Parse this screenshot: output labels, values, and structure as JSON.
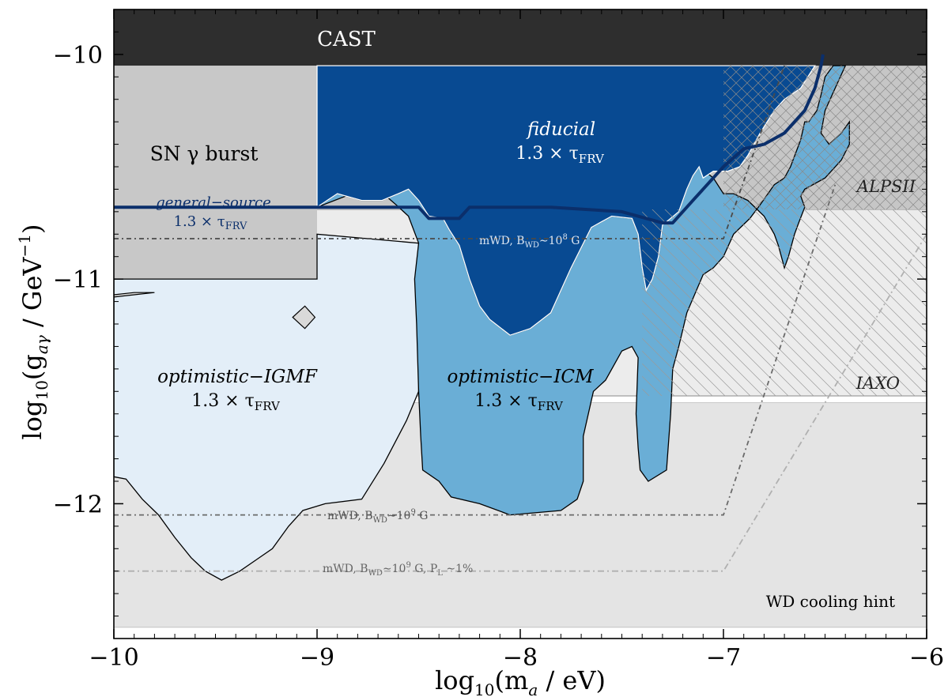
{
  "chart_data": {
    "type": "area",
    "title": "",
    "xlabel": "log₁₀(mₐ / eV)",
    "ylabel": "log₁₀(g_aγ / GeV⁻¹)",
    "xlim": [
      -10,
      -6
    ],
    "ylim": [
      -12.6,
      -9.8
    ],
    "x_ticks": [
      -10,
      -9,
      -8,
      -7,
      -6
    ],
    "x_tick_labels": [
      "−10",
      "−9",
      "−8",
      "−7",
      "−6"
    ],
    "y_ticks": [
      -12,
      -11,
      -10
    ],
    "y_tick_labels": [
      "−12",
      "−11",
      "−10"
    ],
    "grid": false,
    "colors": {
      "cast": "#2e2e2e",
      "sn": "#c8c8c8",
      "fiducial": "#084a92",
      "icm": "#6aaed6",
      "igmf": "#e3eef8",
      "wd": "#e4e4e4",
      "alps": "#c6c6c6",
      "iaxo": "#ececec",
      "general_source": "#0b2f6b"
    },
    "regions": [
      {
        "key": "cast",
        "label": "CAST",
        "polygon": [
          [
            -10,
            -10.05
          ],
          [
            -10,
            -9.8
          ],
          [
            -6,
            -9.8
          ],
          [
            -6,
            -10.05
          ]
        ]
      },
      {
        "key": "sn",
        "label": "SN γ burst",
        "polygon": [
          [
            -10,
            -11.0
          ],
          [
            -10,
            -10.05
          ],
          [
            -9,
            -10.05
          ],
          [
            -9,
            -11.0
          ]
        ]
      },
      {
        "key": "wd",
        "label": "WD cooling hint",
        "polygon": [
          [
            -10,
            -12.55
          ],
          [
            -10,
            -11.55
          ],
          [
            -6,
            -11.55
          ],
          [
            -6,
            -12.55
          ]
        ]
      },
      {
        "key": "iaxo",
        "label": "IAXO",
        "polygon": [
          [
            -10,
            -11.52
          ],
          [
            -10,
            -10.69
          ],
          [
            -6,
            -10.69
          ],
          [
            -6,
            -11.52
          ]
        ]
      },
      {
        "key": "alps",
        "label": "ALPSII",
        "polygon": [
          [
            -10,
            -10.69
          ],
          [
            -10,
            -10.05
          ],
          [
            -6,
            -10.05
          ],
          [
            -6,
            -10.69
          ]
        ]
      },
      {
        "key": "igmf",
        "label": "optimistic−IGMF",
        "label2": "1.3 × τ_FRV",
        "polygon": [
          [
            -10,
            -11.05
          ],
          [
            -10,
            -11.88
          ],
          [
            -9.94,
            -11.89
          ],
          [
            -9.86,
            -11.98
          ],
          [
            -9.78,
            -12.05
          ],
          [
            -9.7,
            -12.15
          ],
          [
            -9.62,
            -12.24
          ],
          [
            -9.55,
            -12.3
          ],
          [
            -9.47,
            -12.34
          ],
          [
            -9.38,
            -12.3
          ],
          [
            -9.3,
            -12.25
          ],
          [
            -9.22,
            -12.2
          ],
          [
            -9.14,
            -12.1
          ],
          [
            -9.07,
            -12.03
          ],
          [
            -8.96,
            -12.0
          ],
          [
            -8.78,
            -11.98
          ],
          [
            -8.67,
            -11.82
          ],
          [
            -8.56,
            -11.63
          ],
          [
            -8.5,
            -11.5
          ],
          [
            -8.49,
            -11.0
          ],
          [
            -8.5,
            -10.84
          ],
          [
            -9.0,
            -10.8
          ],
          [
            -9.0,
            -11.0
          ],
          [
            -10,
            -11.0
          ],
          [
            -10,
            -11.05
          ]
        ]
      },
      {
        "key": "icm",
        "label": "optimistic−ICM",
        "label2": "1.3 × τ_FRV",
        "polygon": [
          [
            -9.0,
            -10.68
          ],
          [
            -8.8,
            -10.61
          ],
          [
            -8.7,
            -10.6
          ],
          [
            -8.61,
            -10.67
          ],
          [
            -8.55,
            -10.72
          ],
          [
            -8.5,
            -10.84
          ],
          [
            -8.52,
            -11.0
          ],
          [
            -8.51,
            -11.2
          ],
          [
            -8.5,
            -11.5
          ],
          [
            -8.49,
            -11.7
          ],
          [
            -8.48,
            -11.85
          ],
          [
            -8.4,
            -11.9
          ],
          [
            -8.34,
            -11.97
          ],
          [
            -8.2,
            -12.0
          ],
          [
            -8.05,
            -12.05
          ],
          [
            -7.8,
            -12.03
          ],
          [
            -7.72,
            -11.98
          ],
          [
            -7.69,
            -11.9
          ],
          [
            -7.69,
            -11.7
          ],
          [
            -7.64,
            -11.5
          ],
          [
            -7.58,
            -11.45
          ],
          [
            -7.5,
            -11.32
          ],
          [
            -7.45,
            -11.3
          ],
          [
            -7.42,
            -11.35
          ],
          [
            -7.43,
            -11.6
          ],
          [
            -7.42,
            -11.75
          ],
          [
            -7.41,
            -11.85
          ],
          [
            -7.37,
            -11.9
          ],
          [
            -7.28,
            -11.85
          ],
          [
            -7.26,
            -11.6
          ],
          [
            -7.25,
            -11.4
          ],
          [
            -7.22,
            -11.3
          ],
          [
            -7.18,
            -11.15
          ],
          [
            -7.1,
            -10.98
          ],
          [
            -7.05,
            -10.95
          ],
          [
            -7.0,
            -10.9
          ],
          [
            -6.95,
            -10.8
          ],
          [
            -6.87,
            -10.73
          ],
          [
            -6.82,
            -10.67
          ],
          [
            -6.75,
            -10.58
          ],
          [
            -6.7,
            -10.55
          ],
          [
            -6.67,
            -10.5
          ],
          [
            -6.62,
            -10.38
          ],
          [
            -6.6,
            -10.3
          ],
          [
            -6.58,
            -10.3
          ],
          [
            -6.54,
            -10.25
          ],
          [
            -6.52,
            -10.18
          ],
          [
            -6.5,
            -10.1
          ],
          [
            -6.46,
            -10.05
          ],
          [
            -6.4,
            -10.05
          ],
          [
            -6.45,
            -10.15
          ],
          [
            -6.5,
            -10.25
          ],
          [
            -6.52,
            -10.35
          ],
          [
            -6.48,
            -10.4
          ],
          [
            -6.42,
            -10.35
          ],
          [
            -6.38,
            -10.3
          ],
          [
            -6.38,
            -10.4
          ],
          [
            -6.42,
            -10.47
          ],
          [
            -6.5,
            -10.55
          ],
          [
            -6.6,
            -10.6
          ],
          [
            -6.62,
            -10.63
          ],
          [
            -6.6,
            -10.68
          ],
          [
            -6.63,
            -10.75
          ],
          [
            -6.65,
            -10.8
          ],
          [
            -6.68,
            -10.9
          ],
          [
            -6.7,
            -10.95
          ],
          [
            -6.73,
            -10.85
          ],
          [
            -6.75,
            -10.8
          ],
          [
            -6.8,
            -10.72
          ],
          [
            -6.88,
            -10.65
          ],
          [
            -6.95,
            -10.62
          ],
          [
            -7.0,
            -10.62
          ],
          [
            -7.05,
            -10.55
          ],
          [
            -7.12,
            -10.5
          ],
          [
            -7.15,
            -10.54
          ],
          [
            -7.18,
            -10.6
          ],
          [
            -7.22,
            -10.7
          ],
          [
            -7.3,
            -10.76
          ],
          [
            -7.32,
            -10.9
          ],
          [
            -7.35,
            -11.0
          ],
          [
            -7.38,
            -11.05
          ],
          [
            -7.4,
            -10.95
          ],
          [
            -7.42,
            -10.8
          ],
          [
            -7.45,
            -10.73
          ],
          [
            -7.55,
            -10.72
          ],
          [
            -7.65,
            -10.77
          ],
          [
            -7.75,
            -10.95
          ],
          [
            -7.85,
            -11.15
          ],
          [
            -7.95,
            -11.22
          ],
          [
            -8.05,
            -11.25
          ],
          [
            -8.15,
            -11.18
          ],
          [
            -8.2,
            -11.12
          ],
          [
            -8.25,
            -11.0
          ],
          [
            -8.3,
            -10.85
          ],
          [
            -8.35,
            -10.78
          ],
          [
            -8.38,
            -10.73
          ],
          [
            -8.45,
            -10.72
          ],
          [
            -8.5,
            -10.65
          ],
          [
            -8.55,
            -10.6
          ],
          [
            -8.6,
            -10.62
          ],
          [
            -8.68,
            -10.65
          ],
          [
            -8.78,
            -10.65
          ],
          [
            -8.9,
            -10.62
          ],
          [
            -8.95,
            -10.65
          ],
          [
            -9.0,
            -10.68
          ]
        ]
      },
      {
        "key": "fiducial",
        "label": "fiducial",
        "label2": "1.3 × τ_FRV",
        "polygon": [
          [
            -9.0,
            -10.05
          ],
          [
            -6.55,
            -10.05
          ],
          [
            -6.62,
            -10.15
          ],
          [
            -6.7,
            -10.2
          ],
          [
            -6.75,
            -10.25
          ],
          [
            -6.82,
            -10.35
          ],
          [
            -6.88,
            -10.45
          ],
          [
            -6.92,
            -10.5
          ],
          [
            -6.98,
            -10.52
          ],
          [
            -7.05,
            -10.52
          ],
          [
            -7.1,
            -10.55
          ],
          [
            -7.12,
            -10.5
          ],
          [
            -7.15,
            -10.54
          ],
          [
            -7.18,
            -10.6
          ],
          [
            -7.22,
            -10.7
          ],
          [
            -7.3,
            -10.76
          ],
          [
            -7.32,
            -10.9
          ],
          [
            -7.35,
            -11.0
          ],
          [
            -7.38,
            -11.05
          ],
          [
            -7.4,
            -10.95
          ],
          [
            -7.42,
            -10.8
          ],
          [
            -7.45,
            -10.73
          ],
          [
            -7.55,
            -10.72
          ],
          [
            -7.65,
            -10.77
          ],
          [
            -7.75,
            -10.95
          ],
          [
            -7.85,
            -11.15
          ],
          [
            -7.95,
            -11.22
          ],
          [
            -8.05,
            -11.25
          ],
          [
            -8.15,
            -11.18
          ],
          [
            -8.2,
            -11.12
          ],
          [
            -8.25,
            -11.0
          ],
          [
            -8.3,
            -10.85
          ],
          [
            -8.35,
            -10.78
          ],
          [
            -8.38,
            -10.73
          ],
          [
            -8.45,
            -10.72
          ],
          [
            -8.5,
            -10.65
          ],
          [
            -8.55,
            -10.6
          ],
          [
            -8.6,
            -10.62
          ],
          [
            -8.68,
            -10.65
          ],
          [
            -8.78,
            -10.65
          ],
          [
            -8.9,
            -10.62
          ],
          [
            -8.95,
            -10.65
          ],
          [
            -9.0,
            -10.68
          ]
        ]
      }
    ],
    "small_features": [
      {
        "key": "igmf-diamond",
        "polygon": [
          [
            -9.12,
            -11.17
          ],
          [
            -9.06,
            -11.12
          ],
          [
            -9.01,
            -11.17
          ],
          [
            -9.06,
            -11.22
          ]
        ]
      },
      {
        "key": "igmf-sliver",
        "polygon": [
          [
            -10,
            -11.07
          ],
          [
            -9.9,
            -11.06
          ],
          [
            -9.8,
            -11.06
          ],
          [
            -9.9,
            -11.07
          ],
          [
            -10,
            -11.08
          ]
        ]
      }
    ],
    "series": [
      {
        "key": "general_source",
        "name": "general−source",
        "label2": "1.3 × τ_FRV",
        "x": [
          -10,
          -9.0,
          -8.6,
          -8.5,
          -8.45,
          -8.35,
          -8.3,
          -8.25,
          -7.85,
          -7.5,
          -7.3,
          -7.25,
          -7.15,
          -7.0,
          -6.9,
          -6.8,
          -6.7,
          -6.6,
          -6.55,
          -6.52,
          -6.51
        ],
        "y": [
          -10.68,
          -10.68,
          -10.68,
          -10.68,
          -10.73,
          -10.73,
          -10.73,
          -10.68,
          -10.68,
          -10.7,
          -10.75,
          -10.75,
          -10.65,
          -10.5,
          -10.42,
          -10.4,
          -10.35,
          -10.25,
          -10.15,
          -10.05,
          -10.0
        ]
      },
      {
        "key": "mwd_b8",
        "name": "mWD, B_WD ∼10⁸ G",
        "style": "dash",
        "x": [
          -10,
          -7.0,
          -6.7
        ],
        "y": [
          -10.82,
          -10.82,
          -10.05
        ]
      },
      {
        "key": "mwd_b9",
        "name": "mWD, B_WD ∼10⁹ G",
        "style": "dash",
        "x": [
          -10,
          -7.0,
          -6.45
        ],
        "y": [
          -12.05,
          -12.05,
          -10.58
        ]
      },
      {
        "key": "mwd_b9_pl",
        "name": "mWD, B_WD ∼10⁹ G, P_L ∼1%",
        "style": "dashdot",
        "x": [
          -10,
          -7.0,
          -6.0
        ],
        "y": [
          -12.3,
          -12.3,
          -10.8
        ]
      }
    ],
    "labels": {
      "cast": "CAST",
      "sn": "SN γ burst",
      "fiducial": "fiducial",
      "fiducial_tau": "1.3 × τ",
      "general_source": "general−source",
      "general_tau": "1.3 × τ",
      "igmf": "optimistic−IGMF",
      "igmf_tau": "1.3 × τ",
      "icm": "optimistic−ICM",
      "icm_tau": "1.3 × τ",
      "tau_sub": "FRV",
      "alps": "ALPSII",
      "iaxo": "IAXO",
      "wd": "WD cooling hint",
      "mwd8_pre": "mWD, B",
      "mwd8_sub": "WD",
      "mwd8_mid": "∼10",
      "mwd8_exp": "8",
      "mwd8_post": " G",
      "mwd9_pre": "mWD, B",
      "mwd9_sub": "WD",
      "mwd9_mid": "∼10",
      "mwd9_exp": "9",
      "mwd9_post": " G",
      "mwd9pl_pre": "mWD, B",
      "mwd9pl_sub": "WD",
      "mwd9pl_mid": "∼10",
      "mwd9pl_exp": "9",
      "mwd9pl_post": " G, P",
      "mwd9pl_sub2": "L",
      "mwd9pl_end": " ∼1%",
      "x_axis_pre": "log",
      "x_axis_sub": "10",
      "x_axis_post": "(m",
      "x_axis_sub2": "a",
      "x_axis_end": "  / eV)",
      "y_axis_pre": "log",
      "y_axis_sub": "10",
      "y_axis_post": "(g",
      "y_axis_sub2": "aγ",
      "y_axis_end": " / GeV",
      "y_axis_exp": "−1",
      "y_axis_close": ")"
    }
  }
}
